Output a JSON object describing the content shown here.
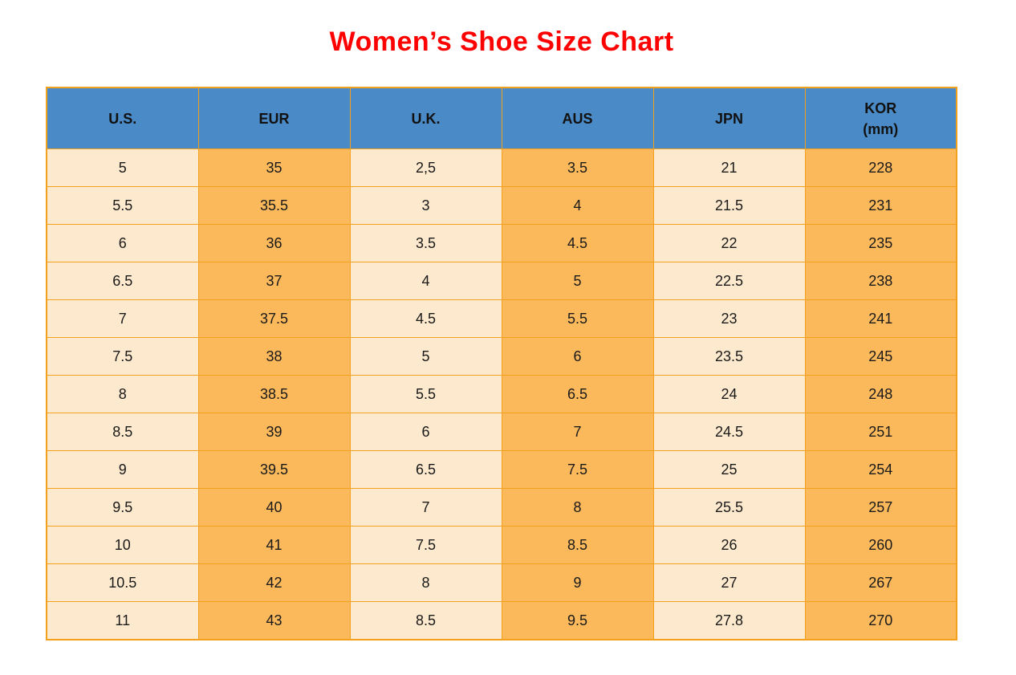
{
  "title": {
    "text": "Women’s Shoe Size Chart"
  },
  "table": {
    "headers": [
      {
        "label": "U.S.",
        "sublabel": ""
      },
      {
        "label": "EUR",
        "sublabel": ""
      },
      {
        "label": "U.K.",
        "sublabel": ""
      },
      {
        "label": "AUS",
        "sublabel": ""
      },
      {
        "label": "JPN",
        "sublabel": ""
      },
      {
        "label": "KOR",
        "sublabel": "(mm)"
      }
    ],
    "rows": [
      [
        "5",
        "35",
        "2,5",
        "3.5",
        "21",
        "228"
      ],
      [
        "5.5",
        "35.5",
        "3",
        "4",
        "21.5",
        "231"
      ],
      [
        "6",
        "36",
        "3.5",
        "4.5",
        "22",
        "235"
      ],
      [
        "6.5",
        "37",
        "4",
        "5",
        "22.5",
        "238"
      ],
      [
        "7",
        "37.5",
        "4.5",
        "5.5",
        "23",
        "241"
      ],
      [
        "7.5",
        "38",
        "5",
        "6",
        "23.5",
        "245"
      ],
      [
        "8",
        "38.5",
        "5.5",
        "6.5",
        "24",
        "248"
      ],
      [
        "8.5",
        "39",
        "6",
        "7",
        "24.5",
        "251"
      ],
      [
        "9",
        "39.5",
        "6.5",
        "7.5",
        "25",
        "254"
      ],
      [
        "9.5",
        "40",
        "7",
        "8",
        "25.5",
        "257"
      ],
      [
        "10",
        "41",
        "7.5",
        "8.5",
        "26",
        "260"
      ],
      [
        "10.5",
        "42",
        "8",
        "9",
        "27",
        "267"
      ],
      [
        "11",
        "43",
        "8.5",
        "9.5",
        "27.8",
        "270"
      ]
    ]
  },
  "chart_data": {
    "type": "table",
    "title": "Women’s Shoe Size Chart",
    "columns": [
      "U.S.",
      "EUR",
      "U.K.",
      "AUS",
      "JPN",
      "KOR (mm)"
    ],
    "rows": [
      [
        "5",
        "35",
        "2,5",
        "3.5",
        "21",
        "228"
      ],
      [
        "5.5",
        "35.5",
        "3",
        "4",
        "21.5",
        "231"
      ],
      [
        "6",
        "36",
        "3.5",
        "4.5",
        "22",
        "235"
      ],
      [
        "6.5",
        "37",
        "4",
        "5",
        "22.5",
        "238"
      ],
      [
        "7",
        "37.5",
        "4.5",
        "5.5",
        "23",
        "241"
      ],
      [
        "7.5",
        "38",
        "5",
        "6",
        "23.5",
        "245"
      ],
      [
        "8",
        "38.5",
        "5.5",
        "6.5",
        "24",
        "248"
      ],
      [
        "8.5",
        "39",
        "6",
        "7",
        "24.5",
        "251"
      ],
      [
        "9",
        "39.5",
        "6.5",
        "7.5",
        "25",
        "254"
      ],
      [
        "9.5",
        "40",
        "7",
        "8",
        "25.5",
        "257"
      ],
      [
        "10",
        "41",
        "7.5",
        "8.5",
        "26",
        "260"
      ],
      [
        "10.5",
        "42",
        "8",
        "9",
        "27",
        "267"
      ],
      [
        "11",
        "43",
        "8.5",
        "9.5",
        "27.8",
        "270"
      ]
    ]
  },
  "colors": {
    "title": "#FF0000",
    "header_bg": "#4A8AC6",
    "header_text": "#111111",
    "row_light": "#FDE9CD",
    "row_dark": "#FBB95C",
    "grid_border": "#F3A01C",
    "cell_text": "#1A1A1A"
  }
}
